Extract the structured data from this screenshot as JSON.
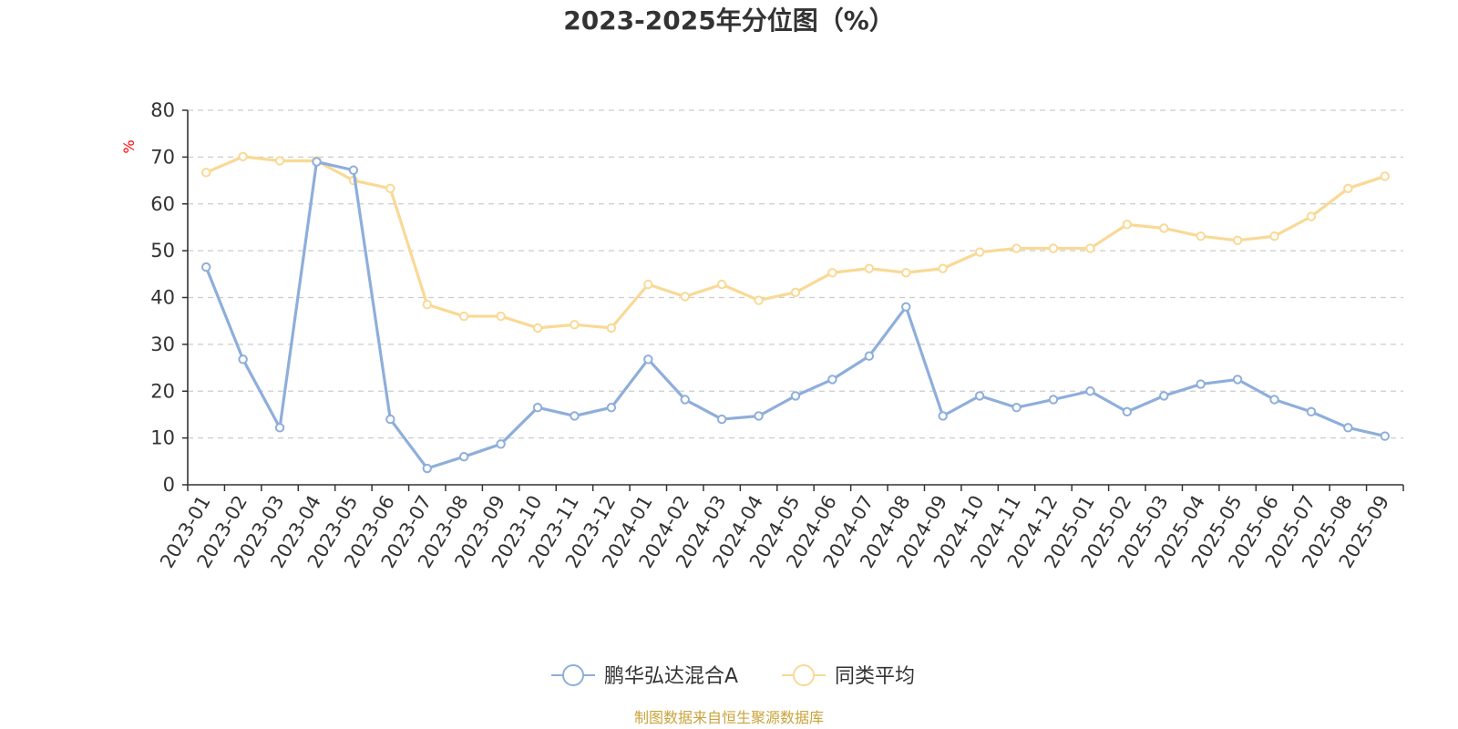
{
  "chart_data": {
    "type": "line",
    "title": "2023-2025年分位图（%）",
    "ylabel": "%",
    "xlabel": "",
    "ylim": [
      0,
      80
    ],
    "yticks": [
      0,
      10,
      20,
      30,
      40,
      50,
      60,
      70,
      80
    ],
    "grid": true,
    "legend_position": "bottom-center",
    "categories": [
      "2023-01",
      "2023-02",
      "2023-03",
      "2023-04",
      "2023-05",
      "2023-06",
      "2023-07",
      "2023-08",
      "2023-09",
      "2023-10",
      "2023-11",
      "2023-12",
      "2024-01",
      "2024-02",
      "2024-03",
      "2024-04",
      "2024-05",
      "2024-06",
      "2024-07",
      "2024-08",
      "2024-09",
      "2024-10",
      "2024-11",
      "2024-12",
      "2025-01",
      "2025-02",
      "2025-03",
      "2025-04",
      "2025-05",
      "2025-06",
      "2025-07",
      "2025-08",
      "2025-09"
    ],
    "series": [
      {
        "name": "鹏华弘达混合A",
        "color": "#8eaedb",
        "values": [
          46.5,
          26.8,
          12.2,
          69.0,
          67.2,
          14.0,
          3.5,
          6.0,
          8.7,
          16.5,
          14.7,
          16.5,
          26.8,
          18.2,
          14.0,
          14.7,
          19.0,
          22.5,
          27.5,
          38.0,
          14.7,
          19.0,
          16.5,
          18.2,
          20.0,
          15.6,
          19.0,
          21.5,
          22.5,
          18.2,
          15.6,
          12.2,
          10.4
        ]
      },
      {
        "name": "同类平均",
        "color": "#f9d995",
        "values": [
          66.7,
          70.1,
          69.2,
          69.2,
          65.0,
          63.3,
          38.5,
          36.0,
          36.0,
          33.5,
          34.2,
          33.5,
          42.8,
          40.2,
          42.8,
          39.4,
          41.1,
          45.3,
          46.2,
          45.3,
          46.2,
          49.7,
          50.5,
          50.5,
          50.5,
          55.6,
          54.8,
          53.1,
          52.2,
          53.1,
          57.3,
          63.3,
          65.9
        ]
      }
    ]
  },
  "source_text": "制图数据来自恒生聚源数据库",
  "colors": {
    "axis": "#333333",
    "grid": "#cccccc",
    "unit": "#ff0000",
    "source": "#c9a33b",
    "text": "#333333"
  }
}
